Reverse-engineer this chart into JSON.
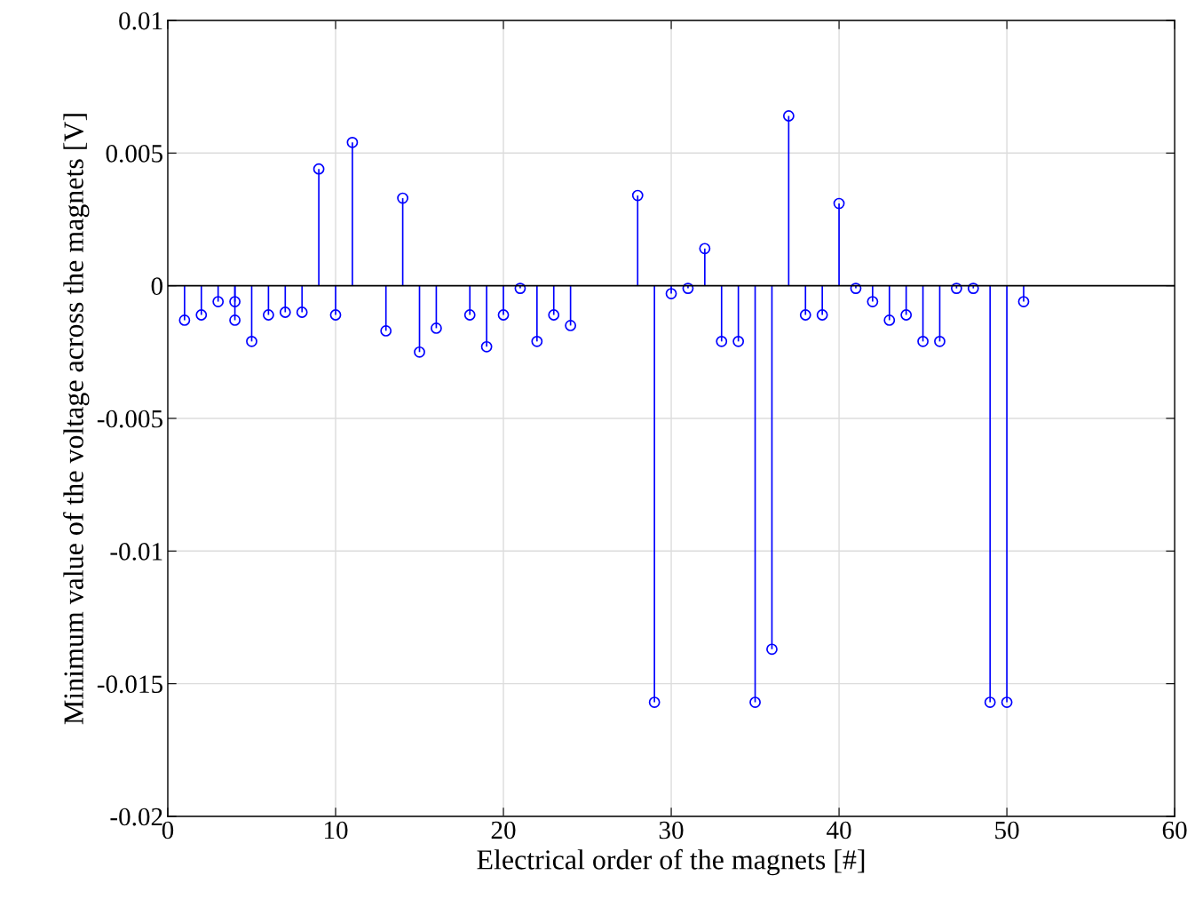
{
  "chart_data": {
    "type": "lollipop",
    "xlabel": "Electrical order of the magnets [#]",
    "ylabel": "Minimum value of the voltage across the magnets [V]",
    "x": [
      1,
      2,
      3,
      4,
      4,
      5,
      6,
      7,
      8,
      9,
      10,
      11,
      13,
      14,
      15,
      16,
      18,
      19,
      20,
      21,
      22,
      23,
      24,
      28,
      29,
      30,
      31,
      32,
      33,
      34,
      35,
      36,
      37,
      38,
      39,
      40,
      41,
      42,
      43,
      44,
      45,
      46,
      47,
      48,
      49,
      50,
      51
    ],
    "values": [
      -0.0013,
      -0.0011,
      -0.0006,
      -0.0006,
      -0.0013,
      -0.0021,
      -0.0011,
      -0.001,
      -0.001,
      0.0044,
      -0.0011,
      0.0054,
      -0.0017,
      0.0033,
      -0.0025,
      -0.0016,
      -0.0011,
      -0.0023,
      -0.0011,
      -0.0001,
      -0.0021,
      -0.0011,
      -0.0015,
      0.0034,
      -0.0157,
      -0.0003,
      -0.0001,
      0.0014,
      -0.0021,
      -0.0021,
      -0.0157,
      -0.0137,
      0.0064,
      -0.0011,
      -0.0011,
      0.0031,
      -0.0001,
      -0.0006,
      -0.0013,
      -0.0011,
      -0.0021,
      -0.0021,
      -0.0001,
      -0.0001,
      -0.0157,
      -0.0157,
      -0.0006
    ],
    "color": "#0000ff",
    "marker": "circle",
    "grid": true,
    "xlim": [
      0,
      60
    ],
    "xticks": [
      0,
      10,
      20,
      30,
      40,
      50,
      60
    ],
    "ylim": [
      -0.02,
      0.01
    ],
    "yticks": [
      -0.02,
      -0.015,
      -0.01,
      -0.005,
      0,
      0.005,
      0.01
    ]
  }
}
